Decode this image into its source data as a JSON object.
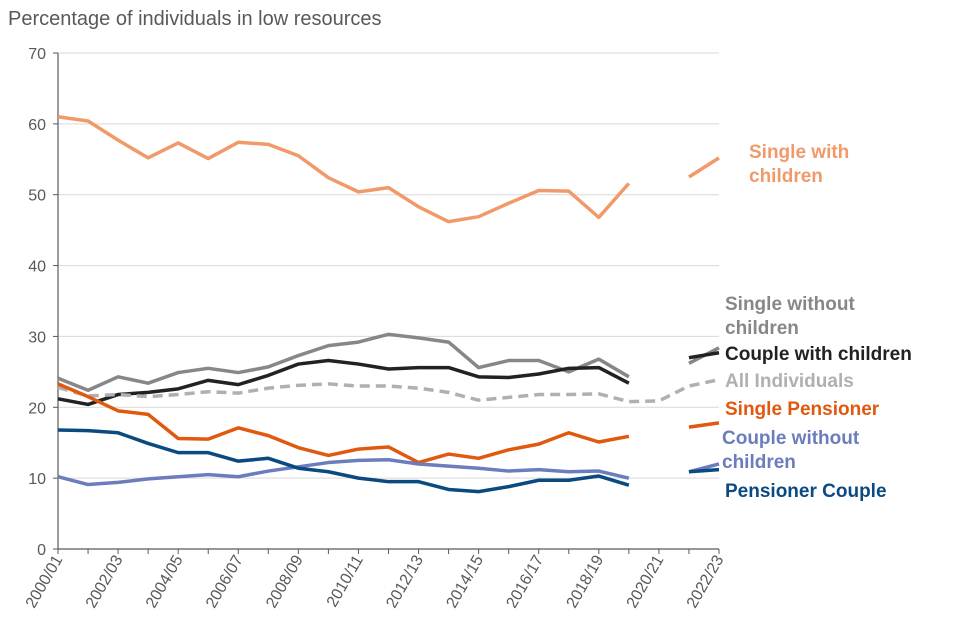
{
  "chart_data": {
    "type": "line",
    "title": "Percentage of individuals in low resources",
    "xlabel": "",
    "ylabel": "",
    "ylim": [
      0,
      70
    ],
    "yticks": [
      0,
      10,
      20,
      30,
      40,
      50,
      60,
      70
    ],
    "grid": true,
    "x": [
      "2000/01",
      "2001/02",
      "2002/03",
      "2003/04",
      "2004/05",
      "2005/06",
      "2006/07",
      "2007/08",
      "2008/09",
      "2009/10",
      "2010/11",
      "2011/12",
      "2012/13",
      "2013/14",
      "2014/15",
      "2015/16",
      "2016/17",
      "2017/18",
      "2018/19",
      "2019/20",
      "2020/21",
      "2021/22",
      "2022/23"
    ],
    "xtick_labels": [
      "2000/01",
      "2002/03",
      "2004/05",
      "2006/07",
      "2008/09",
      "2010/11",
      "2012/13",
      "2014/15",
      "2016/17",
      "2018/19",
      "2020/21",
      "2022/23"
    ],
    "legend_placement": "right (inline labels)",
    "series": [
      {
        "name": "Single with children",
        "label_lines": [
          "Single with",
          "children"
        ],
        "color": "#F09A6A",
        "dashed": false,
        "values": [
          61.0,
          60.4,
          57.7,
          55.2,
          57.3,
          55.1,
          57.4,
          57.1,
          55.5,
          52.4,
          50.4,
          51.0,
          48.3,
          46.2,
          46.9,
          48.8,
          50.6,
          50.5,
          46.8,
          51.6,
          null,
          52.5,
          55.2
        ]
      },
      {
        "name": "Single without children",
        "label_lines": [
          "Single without",
          "children"
        ],
        "color": "#878787",
        "dashed": false,
        "values": [
          24.1,
          22.4,
          24.3,
          23.4,
          24.9,
          25.5,
          24.9,
          25.7,
          27.3,
          28.7,
          29.2,
          30.3,
          29.8,
          29.2,
          25.6,
          26.6,
          26.6,
          25.0,
          26.8,
          24.3,
          null,
          26.2,
          28.4
        ]
      },
      {
        "name": "Couple with children",
        "label_lines": [
          "Couple with children"
        ],
        "color": "#222222",
        "dashed": false,
        "values": [
          21.2,
          20.4,
          21.8,
          22.1,
          22.6,
          23.8,
          23.2,
          24.5,
          26.1,
          26.6,
          26.1,
          25.4,
          25.6,
          25.6,
          24.3,
          24.2,
          24.7,
          25.5,
          25.6,
          23.4,
          null,
          27.0,
          27.7
        ]
      },
      {
        "name": "All Individuals",
        "label_lines": [
          "All Individuals"
        ],
        "color": "#B0B0B0",
        "dashed": true,
        "values": [
          22.8,
          21.6,
          21.8,
          21.5,
          21.8,
          22.2,
          22.0,
          22.7,
          23.1,
          23.3,
          23.0,
          23.0,
          22.7,
          22.1,
          21.0,
          21.4,
          21.8,
          21.8,
          21.9,
          20.8,
          20.9,
          23.0,
          23.9
        ]
      },
      {
        "name": "Single Pensioner",
        "label_lines": [
          "Single Pensioner"
        ],
        "color": "#E0590F",
        "dashed": false,
        "values": [
          23.3,
          21.5,
          19.5,
          19.0,
          15.6,
          15.5,
          17.1,
          16.0,
          14.3,
          13.2,
          14.1,
          14.4,
          12.2,
          13.4,
          12.8,
          14.0,
          14.8,
          16.4,
          15.1,
          15.9,
          null,
          17.2,
          17.8
        ]
      },
      {
        "name": "Couple without children",
        "label_lines": [
          "Couple without",
          "children"
        ],
        "color": "#6B7DBD",
        "dashed": false,
        "values": [
          10.2,
          9.1,
          9.4,
          9.9,
          10.2,
          10.5,
          10.2,
          11.0,
          11.6,
          12.2,
          12.5,
          12.6,
          12.0,
          11.7,
          11.4,
          11.0,
          11.2,
          10.9,
          11.0,
          10.0,
          null,
          10.9,
          12.0
        ]
      },
      {
        "name": "Pensioner Couple",
        "label_lines": [
          "Pensioner Couple"
        ],
        "color": "#0B4A80",
        "dashed": false,
        "values": [
          16.8,
          16.7,
          16.4,
          14.9,
          13.6,
          13.6,
          12.4,
          12.8,
          11.4,
          10.9,
          10.0,
          9.5,
          9.5,
          8.4,
          8.1,
          8.8,
          9.7,
          9.7,
          10.3,
          9.0,
          null,
          10.9,
          11.2
        ]
      }
    ]
  }
}
